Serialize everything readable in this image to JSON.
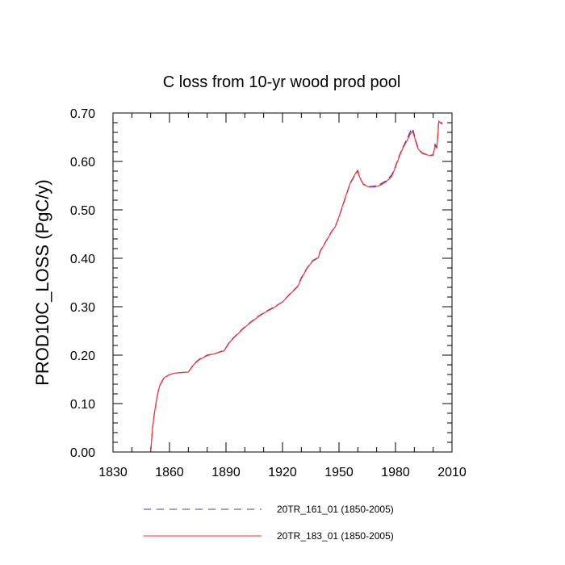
{
  "chart_data": {
    "type": "line",
    "title": "C loss from 10-yr wood prod pool",
    "xlabel": "",
    "ylabel": "PROD10C_LOSS  (PgC/y)",
    "xlim": [
      1830,
      2010
    ],
    "ylim": [
      0.0,
      0.7
    ],
    "x_ticks": [
      "1830",
      "1860",
      "1890",
      "1920",
      "1950",
      "1980",
      "2010"
    ],
    "y_ticks": [
      "0.00",
      "0.10",
      "0.20",
      "0.30",
      "0.40",
      "0.50",
      "0.60",
      "0.70"
    ],
    "grid": false,
    "legend_position": "bottom",
    "series": [
      {
        "name": "20TR_161_01 (1850-2005)",
        "color": "#3333cc",
        "style": "dashed",
        "x": [
          1850,
          1851,
          1852,
          1853,
          1854,
          1855,
          1857,
          1860,
          1863,
          1866,
          1870,
          1873,
          1876,
          1880,
          1884,
          1889,
          1892,
          1895,
          1899,
          1903,
          1907,
          1911,
          1915,
          1920,
          1924,
          1928,
          1930,
          1933,
          1936,
          1939,
          1940,
          1943,
          1946,
          1948,
          1950,
          1953,
          1956,
          1959,
          1960,
          1961,
          1963,
          1966,
          1969,
          1972,
          1975,
          1978,
          1980,
          1982,
          1984,
          1986,
          1988,
          1989,
          1990,
          1991,
          1992,
          1994,
          1996,
          1999,
          2000,
          2001,
          2002,
          2003,
          2004,
          2005
        ],
        "y": [
          0.0,
          0.05,
          0.08,
          0.105,
          0.125,
          0.138,
          0.152,
          0.16,
          0.163,
          0.164,
          0.165,
          0.182,
          0.192,
          0.2,
          0.203,
          0.21,
          0.228,
          0.24,
          0.255,
          0.268,
          0.28,
          0.29,
          0.298,
          0.31,
          0.327,
          0.342,
          0.36,
          0.38,
          0.395,
          0.402,
          0.415,
          0.435,
          0.455,
          0.465,
          0.485,
          0.52,
          0.555,
          0.575,
          0.58,
          0.565,
          0.553,
          0.548,
          0.549,
          0.553,
          0.56,
          0.572,
          0.59,
          0.612,
          0.63,
          0.645,
          0.663,
          0.668,
          0.655,
          0.64,
          0.628,
          0.618,
          0.615,
          0.613,
          0.614,
          0.635,
          0.63,
          0.685,
          0.68,
          0.679
        ]
      },
      {
        "name": "20TR_183_01 (1850-2005)",
        "color": "#ff3333",
        "style": "solid",
        "x": [
          1850,
          1851,
          1852,
          1853,
          1854,
          1855,
          1857,
          1860,
          1863,
          1866,
          1870,
          1873,
          1876,
          1880,
          1884,
          1889,
          1892,
          1895,
          1899,
          1903,
          1907,
          1911,
          1915,
          1920,
          1924,
          1928,
          1930,
          1933,
          1936,
          1939,
          1940,
          1943,
          1946,
          1948,
          1950,
          1953,
          1956,
          1959,
          1960,
          1961,
          1963,
          1966,
          1969,
          1972,
          1975,
          1978,
          1980,
          1982,
          1984,
          1986,
          1988,
          1989,
          1990,
          1991,
          1992,
          1994,
          1996,
          1999,
          2000,
          2001,
          2002,
          2003,
          2004,
          2005
        ],
        "y": [
          0.0,
          0.05,
          0.08,
          0.106,
          0.126,
          0.139,
          0.153,
          0.16,
          0.163,
          0.164,
          0.165,
          0.181,
          0.191,
          0.199,
          0.203,
          0.209,
          0.227,
          0.239,
          0.254,
          0.267,
          0.279,
          0.289,
          0.297,
          0.31,
          0.326,
          0.341,
          0.358,
          0.379,
          0.394,
          0.401,
          0.414,
          0.434,
          0.454,
          0.465,
          0.486,
          0.522,
          0.556,
          0.577,
          0.582,
          0.567,
          0.552,
          0.547,
          0.547,
          0.551,
          0.558,
          0.569,
          0.588,
          0.61,
          0.628,
          0.642,
          0.658,
          0.662,
          0.652,
          0.637,
          0.626,
          0.617,
          0.614,
          0.612,
          0.613,
          0.632,
          0.628,
          0.683,
          0.679,
          0.677
        ]
      }
    ]
  }
}
